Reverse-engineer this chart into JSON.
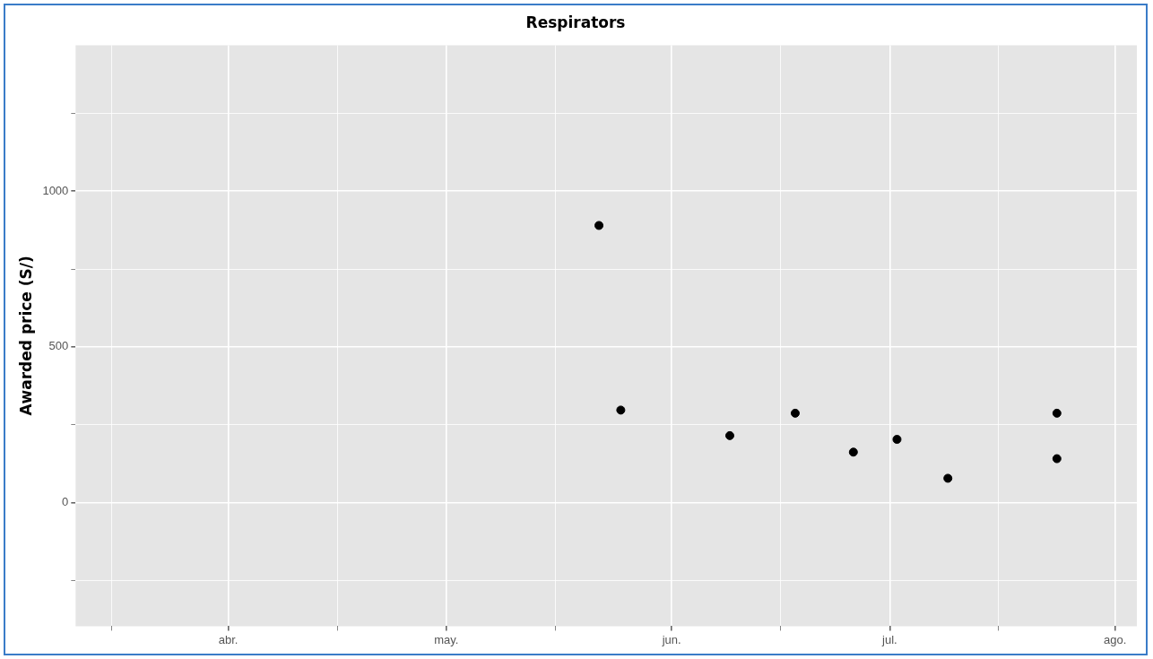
{
  "chart_data": {
    "type": "scatter",
    "title": "Respirators",
    "ylabel": "Awarded price (S/)",
    "x": [
      "--05-22",
      "--05-25",
      "--06-09",
      "--06-18",
      "--06-26",
      "--07-02",
      "--07-09",
      "--07-24",
      "--07-24"
    ],
    "values": [
      890,
      297,
      215,
      287,
      162,
      203,
      78,
      287,
      141
    ],
    "color": "#000000",
    "marker": "circle",
    "xlim": [
      "--03-11",
      "--08-04"
    ],
    "xticks": [
      {
        "value": "--03-16",
        "label": null
      },
      {
        "value": "--04-01",
        "label": "abr."
      },
      {
        "value": "--04-16",
        "label": null
      },
      {
        "value": "--05-01",
        "label": "may."
      },
      {
        "value": "--05-16",
        "label": null
      },
      {
        "value": "--06-01",
        "label": "jun."
      },
      {
        "value": "--06-16",
        "label": null
      },
      {
        "value": "--07-01",
        "label": "jul."
      },
      {
        "value": "--07-16",
        "label": null
      },
      {
        "value": "--08-01",
        "label": "ago."
      }
    ],
    "ylim": [
      -397,
      1469
    ],
    "yticks": [
      {
        "value": -250,
        "label": null
      },
      0,
      {
        "value": 250,
        "label": null
      },
      500,
      {
        "value": 750,
        "label": null
      },
      1000,
      {
        "value": 1250,
        "label": null
      }
    ],
    "grid": true,
    "legend": false
  }
}
